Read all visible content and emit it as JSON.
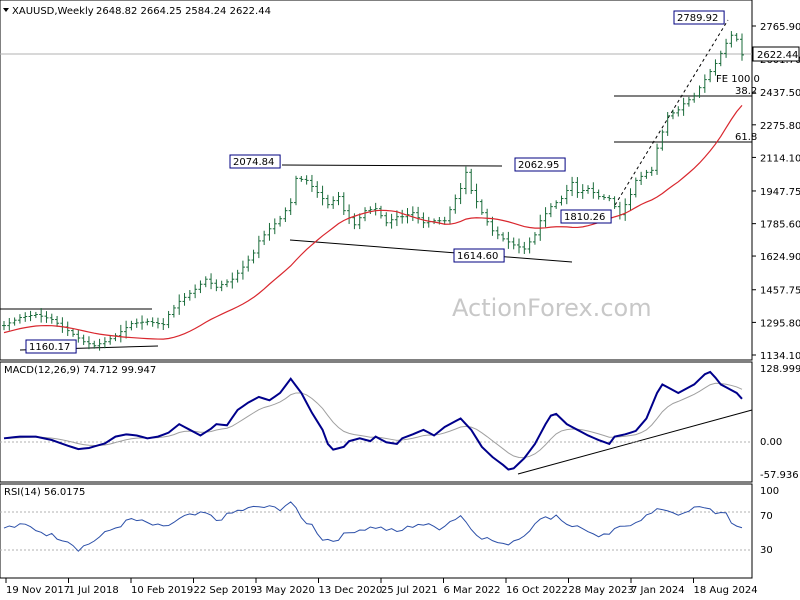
{
  "header": {
    "symbol_line": "XAUUSD,Weekly",
    "ohlc": "2648.82 2664.25 2584.24 2622.44"
  },
  "watermark": "ActionForex.com",
  "colors": {
    "price_bar": "#1a6b3a",
    "ma": "#d9272e",
    "macd": "#00008b",
    "signal": "#a0a0a0",
    "rsi": "#2b4fa8",
    "lines": "#000000"
  },
  "chart_data": [
    {
      "type": "line",
      "name": "price",
      "y_ticks": [
        "2765.90",
        "2601.70",
        "2437.50",
        "2275.80",
        "2114.10",
        "1947.75",
        "1785.60",
        "1624.90",
        "1457.75",
        "1295.80",
        "1134.10"
      ],
      "ylim": [
        1134.1,
        2765.9
      ],
      "current_price_label": "2622.44",
      "price_annotations": [
        {
          "text": "2789.92"
        },
        {
          "text": "2074.84"
        },
        {
          "text": "2062.95"
        },
        {
          "text": "1810.26"
        },
        {
          "text": "1614.60"
        },
        {
          "text": "1160.17"
        }
      ],
      "fib_labels": [
        {
          "text": "FE 100.0"
        },
        {
          "text": "38.2"
        },
        {
          "text": "61.8"
        }
      ],
      "x_labels": [
        "19 Nov 2017",
        "1 Jul 2018",
        "10 Feb 2019",
        "22 Sep 2019",
        "3 May 2020",
        "13 Dec 2020",
        "25 Jul 2021",
        "6 Mar 2022",
        "16 Oct 2022",
        "28 May 2023",
        "7 Jan 2024",
        "18 Aug 2024"
      ],
      "close_anchors": [
        [
          0,
          1280
        ],
        [
          3,
          1320
        ],
        [
          6,
          1335
        ],
        [
          9,
          1310
        ],
        [
          12,
          1255
        ],
        [
          15,
          1200
        ],
        [
          17,
          1180
        ],
        [
          19,
          1200
        ],
        [
          21,
          1230
        ],
        [
          24,
          1290
        ],
        [
          27,
          1300
        ],
        [
          30,
          1285
        ],
        [
          31,
          1335
        ],
        [
          33,
          1400
        ],
        [
          36,
          1460
        ],
        [
          38,
          1510
        ],
        [
          40,
          1470
        ],
        [
          43,
          1510
        ],
        [
          45,
          1570
        ],
        [
          47,
          1640
        ],
        [
          48,
          1700
        ],
        [
          50,
          1760
        ],
        [
          52,
          1810
        ],
        [
          54,
          1890
        ],
        [
          55,
          2010
        ],
        [
          57,
          2000
        ],
        [
          59,
          1940
        ],
        [
          61,
          1880
        ],
        [
          63,
          1920
        ],
        [
          64,
          1850
        ],
        [
          66,
          1780
        ],
        [
          68,
          1850
        ],
        [
          70,
          1860
        ],
        [
          72,
          1790
        ],
        [
          74,
          1820
        ],
        [
          75,
          1820
        ],
        [
          77,
          1840
        ],
        [
          79,
          1790
        ],
        [
          81,
          1800
        ],
        [
          83,
          1800
        ],
        [
          85,
          1910
        ],
        [
          86,
          1960
        ],
        [
          87,
          2040
        ],
        [
          88,
          1950
        ],
        [
          90,
          1840
        ],
        [
          92,
          1750
        ],
        [
          94,
          1710
        ],
        [
          96,
          1680
        ],
        [
          98,
          1660
        ],
        [
          100,
          1730
        ],
        [
          101,
          1800
        ],
        [
          103,
          1870
        ],
        [
          105,
          1910
        ],
        [
          107,
          1990
        ],
        [
          108,
          1940
        ],
        [
          110,
          1960
        ],
        [
          112,
          1920
        ],
        [
          114,
          1910
        ],
        [
          115,
          1870
        ],
        [
          116,
          1830
        ],
        [
          118,
          1930
        ],
        [
          119,
          2000
        ],
        [
          121,
          2040
        ],
        [
          122,
          2050
        ],
        [
          123,
          2160
        ],
        [
          125,
          2320
        ],
        [
          127,
          2350
        ],
        [
          128,
          2380
        ],
        [
          130,
          2420
        ],
        [
          132,
          2500
        ],
        [
          134,
          2580
        ],
        [
          136,
          2680
        ],
        [
          137,
          2720
        ],
        [
          138,
          2700
        ],
        [
          139,
          2622.44
        ]
      ]
    },
    {
      "type": "line",
      "name": "macd",
      "title": "MACD(12,26,9) 74.712 99.947",
      "y_ticks": [
        "128.999",
        "0.00",
        "-57.936"
      ],
      "ylim": [
        -57.936,
        128.999
      ],
      "macd_anchors": [
        [
          0,
          5
        ],
        [
          3,
          8
        ],
        [
          6,
          8
        ],
        [
          9,
          2
        ],
        [
          12,
          -8
        ],
        [
          14,
          -14
        ],
        [
          16,
          -12
        ],
        [
          19,
          -4
        ],
        [
          21,
          8
        ],
        [
          23,
          12
        ],
        [
          25,
          10
        ],
        [
          27,
          5
        ],
        [
          29,
          8
        ],
        [
          31,
          15
        ],
        [
          33,
          30
        ],
        [
          35,
          20
        ],
        [
          37,
          10
        ],
        [
          39,
          22
        ],
        [
          40,
          30
        ],
        [
          42,
          28
        ],
        [
          44,
          55
        ],
        [
          46,
          68
        ],
        [
          48,
          78
        ],
        [
          50,
          72
        ],
        [
          52,
          85
        ],
        [
          54,
          110
        ],
        [
          56,
          85
        ],
        [
          58,
          50
        ],
        [
          60,
          20
        ],
        [
          61,
          -5
        ],
        [
          62,
          -15
        ],
        [
          64,
          -10
        ],
        [
          65,
          0
        ],
        [
          67,
          5
        ],
        [
          69,
          0
        ],
        [
          70,
          8
        ],
        [
          72,
          -2
        ],
        [
          74,
          -5
        ],
        [
          75,
          5
        ],
        [
          77,
          12
        ],
        [
          79,
          20
        ],
        [
          81,
          10
        ],
        [
          83,
          25
        ],
        [
          85,
          35
        ],
        [
          86,
          40
        ],
        [
          88,
          20
        ],
        [
          90,
          -10
        ],
        [
          92,
          -28
        ],
        [
          94,
          -42
        ],
        [
          95,
          -50
        ],
        [
          96,
          -48
        ],
        [
          98,
          -30
        ],
        [
          100,
          -5
        ],
        [
          102,
          30
        ],
        [
          103,
          45
        ],
        [
          104,
          48
        ],
        [
          106,
          30
        ],
        [
          108,
          20
        ],
        [
          110,
          10
        ],
        [
          112,
          2
        ],
        [
          114,
          -5
        ],
        [
          115,
          8
        ],
        [
          117,
          12
        ],
        [
          119,
          18
        ],
        [
          121,
          40
        ],
        [
          123,
          85
        ],
        [
          124,
          100
        ],
        [
          125,
          95
        ],
        [
          127,
          85
        ],
        [
          129,
          95
        ],
        [
          130,
          100
        ],
        [
          132,
          118
        ],
        [
          133,
          122
        ],
        [
          134,
          112
        ],
        [
          135,
          100
        ],
        [
          136,
          95
        ],
        [
          137,
          90
        ],
        [
          138,
          85
        ],
        [
          139,
          74.712
        ]
      ]
    },
    {
      "type": "line",
      "name": "rsi",
      "title": "RSI(14) 56.0175",
      "y_ticks": [
        "100",
        "70",
        "30"
      ],
      "ylim": [
        0,
        100
      ],
      "rsi_anchors": [
        [
          0,
          55
        ],
        [
          4,
          58
        ],
        [
          8,
          48
        ],
        [
          12,
          40
        ],
        [
          14,
          30
        ],
        [
          16,
          36
        ],
        [
          20,
          52
        ],
        [
          24,
          65
        ],
        [
          26,
          62
        ],
        [
          30,
          55
        ],
        [
          34,
          68
        ],
        [
          38,
          72
        ],
        [
          40,
          64
        ],
        [
          44,
          75
        ],
        [
          48,
          80
        ],
        [
          52,
          78
        ],
        [
          54,
          86
        ],
        [
          56,
          66
        ],
        [
          58,
          58
        ],
        [
          60,
          42
        ],
        [
          62,
          40
        ],
        [
          66,
          52
        ],
        [
          70,
          56
        ],
        [
          74,
          50
        ],
        [
          78,
          60
        ],
        [
          82,
          55
        ],
        [
          86,
          70
        ],
        [
          88,
          54
        ],
        [
          90,
          44
        ],
        [
          92,
          40
        ],
        [
          94,
          34
        ],
        [
          96,
          40
        ],
        [
          98,
          46
        ],
        [
          100,
          62
        ],
        [
          102,
          66
        ],
        [
          104,
          70
        ],
        [
          106,
          60
        ],
        [
          108,
          56
        ],
        [
          110,
          52
        ],
        [
          112,
          42
        ],
        [
          114,
          48
        ],
        [
          116,
          55
        ],
        [
          118,
          60
        ],
        [
          120,
          66
        ],
        [
          122,
          72
        ],
        [
          124,
          78
        ],
        [
          126,
          74
        ],
        [
          128,
          70
        ],
        [
          130,
          78
        ],
        [
          132,
          80
        ],
        [
          134,
          74
        ],
        [
          136,
          70
        ],
        [
          137,
          60
        ],
        [
          138,
          58
        ],
        [
          139,
          56.0175
        ]
      ]
    }
  ]
}
